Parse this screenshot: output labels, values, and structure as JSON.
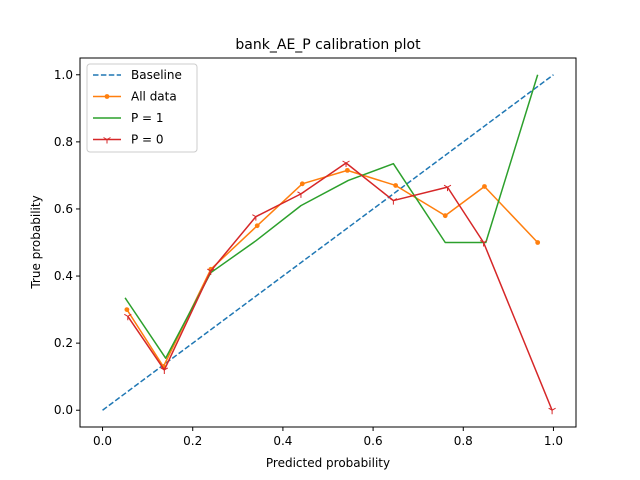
{
  "chart_data": {
    "type": "line",
    "title": "bank_AE_P calibration plot",
    "xlabel": "Predicted probability",
    "ylabel": "True probability",
    "xlim": [
      -0.05,
      1.05
    ],
    "ylim": [
      -0.05,
      1.05
    ],
    "xticks": [
      0.0,
      0.2,
      0.4,
      0.6,
      0.8,
      1.0
    ],
    "yticks": [
      0.0,
      0.2,
      0.4,
      0.6,
      0.8,
      1.0
    ],
    "xtick_labels": [
      "0.0",
      "0.2",
      "0.4",
      "0.6",
      "0.8",
      "1.0"
    ],
    "ytick_labels": [
      "0.0",
      "0.2",
      "0.4",
      "0.6",
      "0.8",
      "1.0"
    ],
    "grid": false,
    "legend_position": "upper-left",
    "series": [
      {
        "name": "Baseline",
        "color": "#1f77b4",
        "style": "dashed",
        "marker": "none",
        "x": [
          0.0,
          1.0
        ],
        "y": [
          0.0,
          1.0
        ]
      },
      {
        "name": "All data",
        "color": "#ff7f0e",
        "style": "solid",
        "marker": "dot",
        "x": [
          0.054,
          0.135,
          0.24,
          0.343,
          0.443,
          0.543,
          0.65,
          0.76,
          0.847,
          0.965
        ],
        "y": [
          0.3,
          0.13,
          0.42,
          0.55,
          0.675,
          0.715,
          0.67,
          0.58,
          0.667,
          0.5
        ]
      },
      {
        "name": "P = 1",
        "color": "#2ca02c",
        "style": "solid",
        "marker": "none",
        "x": [
          0.05,
          0.14,
          0.24,
          0.34,
          0.44,
          0.545,
          0.645,
          0.76,
          0.85,
          0.965
        ],
        "y": [
          0.335,
          0.155,
          0.41,
          0.505,
          0.61,
          0.685,
          0.735,
          0.5,
          0.5,
          1.0
        ]
      },
      {
        "name": "P = 0",
        "color": "#d62728",
        "style": "solid",
        "marker": "tri",
        "x": [
          0.056,
          0.137,
          0.24,
          0.34,
          0.44,
          0.54,
          0.645,
          0.765,
          0.845,
          0.997
        ],
        "y": [
          0.28,
          0.12,
          0.415,
          0.577,
          0.645,
          0.737,
          0.625,
          0.665,
          0.5,
          0.0
        ]
      }
    ]
  }
}
